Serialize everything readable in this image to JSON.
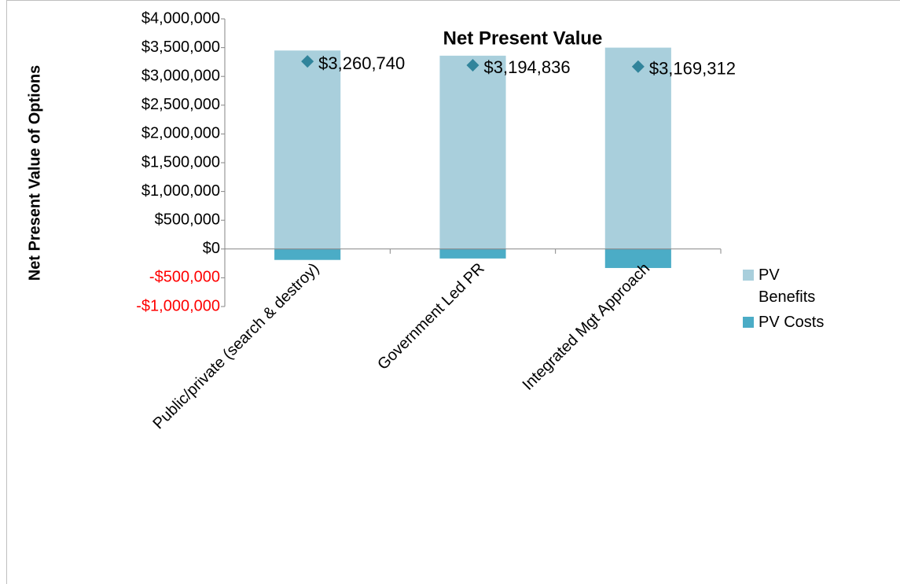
{
  "chart_data": {
    "type": "bar",
    "title": "Net Present Value",
    "y_axis_label": "Net Present Value of Options",
    "categories": [
      "Public/private (search & destroy)",
      "Government Led PR",
      "Integrated Mgt Approach"
    ],
    "series": [
      {
        "name": "PV Benefits",
        "color": "#a9cfdc",
        "values": [
          3450000,
          3360000,
          3500000
        ]
      },
      {
        "name": "PV Costs",
        "color": "#4bacc6",
        "values": [
          -190000,
          -165000,
          -330000
        ]
      }
    ],
    "markers": {
      "color": "#31849b",
      "values": [
        3260740,
        3194836,
        3169312
      ],
      "value_labels": [
        "$3,260,740",
        "$3,194,836",
        "$3,169,312"
      ]
    },
    "ylim": [
      -1000000,
      4000000
    ],
    "yticks": [
      {
        "value": -1000000,
        "label": "-$1,000,000"
      },
      {
        "value": -500000,
        "label": "-$500,000"
      },
      {
        "value": 0,
        "label": "$0"
      },
      {
        "value": 500000,
        "label": "$500,000"
      },
      {
        "value": 1000000,
        "label": "$1,000,000"
      },
      {
        "value": 1500000,
        "label": "$1,500,000"
      },
      {
        "value": 2000000,
        "label": "$2,000,000"
      },
      {
        "value": 2500000,
        "label": "$2,500,000"
      },
      {
        "value": 3000000,
        "label": "$3,000,000"
      },
      {
        "value": 3500000,
        "label": "$3,500,000"
      },
      {
        "value": 4000000,
        "label": "$4,000,000"
      }
    ],
    "negative_tick_color": "#ff0000",
    "legend": "right"
  }
}
